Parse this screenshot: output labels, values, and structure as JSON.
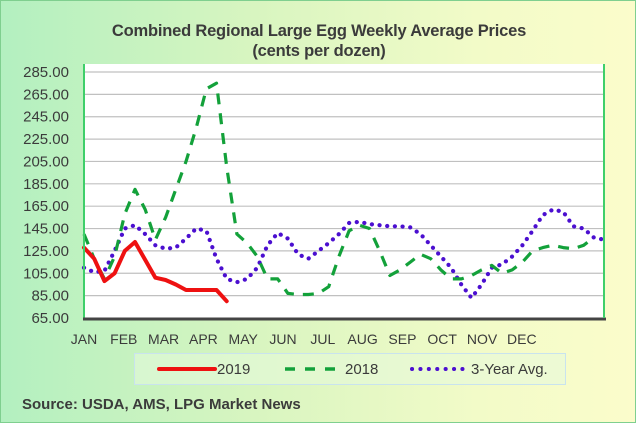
{
  "chart_data": {
    "type": "line",
    "title": "Combined Regional Large Egg Weekly Average Prices",
    "subtitle": "(cents per dozen)",
    "xlabel": "",
    "ylabel": "",
    "ylim": [
      65,
      285
    ],
    "yticks": [
      "285.00",
      "265.00",
      "245.00",
      "225.00",
      "205.00",
      "185.00",
      "165.00",
      "145.00",
      "125.00",
      "105.00",
      "85.00",
      "65.00"
    ],
    "ytick_values": [
      285,
      265,
      245,
      225,
      205,
      185,
      165,
      145,
      125,
      105,
      85,
      65
    ],
    "xticks": [
      "JAN",
      "FEB",
      "MAR",
      "APR",
      "MAY",
      "JUN",
      "JUL",
      "AUG",
      "SEP",
      "OCT",
      "NOV",
      "DEC"
    ],
    "x_unit": "week",
    "x_range": [
      0,
      51
    ],
    "grid": true,
    "legend_position": "bottom",
    "series": [
      {
        "name": "2019",
        "color": "#ee1111",
        "style": "solid",
        "x": [
          0,
          1,
          2,
          3,
          4,
          5,
          6,
          7,
          8,
          9,
          10,
          11,
          12,
          13,
          14
        ],
        "values": [
          128,
          118,
          98,
          105,
          125,
          133,
          117,
          101,
          99,
          95,
          90,
          90,
          90,
          90,
          80
        ]
      },
      {
        "name": "2018",
        "color": "#13a13a",
        "style": "dashed",
        "x": [
          0,
          1,
          2,
          3,
          4,
          5,
          6,
          7,
          8,
          9,
          10,
          11,
          12,
          13,
          14,
          15,
          16,
          17,
          18,
          19,
          20,
          21,
          22,
          23,
          24,
          25,
          26,
          27,
          28,
          29,
          30,
          31,
          32,
          33,
          34,
          35,
          36,
          37,
          38,
          39,
          40,
          41,
          42,
          43,
          44,
          45,
          46,
          47,
          48,
          49,
          50
        ],
        "values": [
          140,
          118,
          100,
          120,
          158,
          180,
          162,
          135,
          155,
          180,
          205,
          235,
          270,
          275,
          200,
          140,
          132,
          120,
          100,
          100,
          87,
          86,
          86,
          87,
          93,
          120,
          143,
          148,
          145,
          125,
          103,
          108,
          115,
          122,
          118,
          108,
          100,
          100,
          103,
          108,
          112,
          105,
          108,
          115,
          125,
          128,
          130,
          128,
          127,
          130,
          137
        ]
      },
      {
        "name": "3-Year Avg.",
        "color": "#4b0fd0",
        "style": "dotted",
        "x": [
          0,
          1,
          2,
          3,
          4,
          5,
          6,
          7,
          8,
          9,
          10,
          11,
          12,
          13,
          14,
          15,
          16,
          17,
          18,
          19,
          20,
          21,
          22,
          23,
          24,
          25,
          26,
          27,
          28,
          29,
          30,
          31,
          32,
          33,
          34,
          35,
          36,
          37,
          38,
          39,
          40,
          41,
          42,
          43,
          44,
          45,
          46,
          47,
          48,
          49,
          50,
          51
        ],
        "values": [
          110,
          106,
          107,
          125,
          145,
          148,
          140,
          130,
          127,
          128,
          136,
          145,
          143,
          118,
          100,
          97,
          100,
          110,
          130,
          141,
          136,
          122,
          118,
          125,
          132,
          140,
          150,
          151,
          149,
          148,
          147,
          147,
          146,
          140,
          130,
          120,
          110,
          95,
          83,
          95,
          110,
          113,
          120,
          130,
          143,
          157,
          162,
          160,
          147,
          145,
          137,
          135
        ]
      }
    ],
    "source": "Source: USDA, AMS, LPG  Market News"
  },
  "colors": {
    "plot_bg": "#ffffff",
    "grid": "#c0c0c0",
    "axis": "#444444"
  }
}
